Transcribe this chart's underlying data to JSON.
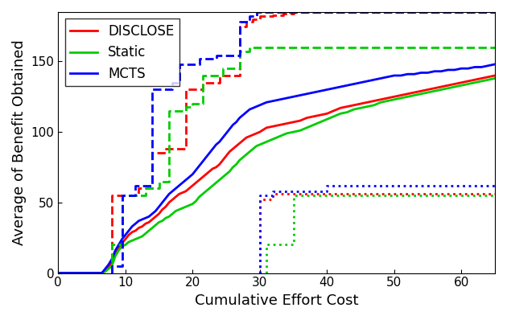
{
  "title": "",
  "xlabel": "Cumulative Effort Cost",
  "ylabel": "Average of Benefit Obtained",
  "xlim": [
    0,
    65
  ],
  "ylim": [
    0,
    185
  ],
  "xticks": [
    0,
    10,
    20,
    30,
    40,
    50,
    60
  ],
  "yticks": [
    0,
    50,
    100,
    150
  ],
  "colors": {
    "DISCLOSE": "#ff0000",
    "Static": "#00cc00",
    "MCTS": "#0000ff"
  },
  "legend_labels": [
    "DISCLOSE",
    "Static",
    "MCTS"
  ],
  "solid_DISCLOSE_x": [
    0,
    6.5,
    7.0,
    7.5,
    8.0,
    8.5,
    9.0,
    9.5,
    10.0,
    10.5,
    11.0,
    11.5,
    12.0,
    12.5,
    13.0,
    13.5,
    14.0,
    14.5,
    15.0,
    15.5,
    16.0,
    16.5,
    17.0,
    17.5,
    18.0,
    18.5,
    19.0,
    19.5,
    20.0,
    20.5,
    21.0,
    21.5,
    22.0,
    22.5,
    23.0,
    23.5,
    24.0,
    24.5,
    25.0,
    25.5,
    26.0,
    26.5,
    27.0,
    27.5,
    28.0,
    28.5,
    29.0,
    29.5,
    30.0,
    31.0,
    32.0,
    33.0,
    34.0,
    35.0,
    36.0,
    37.0,
    38.0,
    39.0,
    40.0,
    41.0,
    42.0,
    43.0,
    44.0,
    45.0,
    46.0,
    47.0,
    48.0,
    49.0,
    50.0,
    51.0,
    52.0,
    53.0,
    54.0,
    55.0,
    56.0,
    57.0,
    58.0,
    59.0,
    60.0,
    61.0,
    62.0,
    63.0,
    64.0,
    65.0
  ],
  "solid_DISCLOSE_y": [
    0,
    0,
    2,
    4,
    8,
    14,
    18,
    21,
    24,
    27,
    29,
    30,
    32,
    33,
    35,
    36,
    38,
    40,
    42,
    45,
    47,
    50,
    52,
    54,
    56,
    57,
    58,
    60,
    62,
    64,
    66,
    68,
    70,
    72,
    74,
    75,
    77,
    80,
    83,
    86,
    88,
    90,
    92,
    94,
    96,
    97,
    98,
    99,
    100,
    103,
    104,
    105,
    106,
    107,
    108,
    110,
    111,
    112,
    113,
    115,
    117,
    118,
    119,
    120,
    121,
    122,
    123,
    124,
    125,
    126,
    127,
    128,
    129,
    130,
    131,
    132,
    133,
    134,
    135,
    136,
    137,
    138,
    139,
    140
  ],
  "solid_Static_x": [
    0,
    6.5,
    7.0,
    7.5,
    8.0,
    8.5,
    9.0,
    9.5,
    10.0,
    10.5,
    11.0,
    11.5,
    12.0,
    12.5,
    13.0,
    13.5,
    14.0,
    14.5,
    15.0,
    15.5,
    16.0,
    16.5,
    17.0,
    17.5,
    18.0,
    18.5,
    19.0,
    19.5,
    20.0,
    20.5,
    21.0,
    21.5,
    22.0,
    22.5,
    23.0,
    23.5,
    24.0,
    24.5,
    25.0,
    25.5,
    26.0,
    26.5,
    27.0,
    27.5,
    28.0,
    28.5,
    29.0,
    29.5,
    30.0,
    31.0,
    32.0,
    33.0,
    34.0,
    35.0,
    36.0,
    37.0,
    38.0,
    39.0,
    40.0,
    41.0,
    42.0,
    43.0,
    44.0,
    45.0,
    46.0,
    47.0,
    48.0,
    49.0,
    50.0,
    51.0,
    52.0,
    53.0,
    54.0,
    55.0,
    56.0,
    57.0,
    58.0,
    59.0,
    60.0,
    61.0,
    62.0,
    63.0,
    64.0,
    65.0
  ],
  "solid_Static_y": [
    0,
    0,
    1,
    3,
    5,
    12,
    16,
    19,
    20,
    22,
    23,
    24,
    25,
    26,
    28,
    30,
    32,
    34,
    36,
    37,
    39,
    40,
    42,
    44,
    45,
    46,
    47,
    48,
    49,
    51,
    54,
    56,
    58,
    60,
    62,
    64,
    66,
    68,
    70,
    72,
    75,
    77,
    80,
    82,
    84,
    86,
    88,
    90,
    91,
    93,
    95,
    97,
    99,
    100,
    101,
    103,
    105,
    107,
    109,
    111,
    113,
    114,
    116,
    117,
    118,
    119,
    121,
    122,
    123,
    124,
    125,
    126,
    127,
    128,
    129,
    130,
    131,
    132,
    133,
    134,
    135,
    136,
    137,
    138
  ],
  "solid_MCTS_x": [
    0,
    6.5,
    7.0,
    7.5,
    8.0,
    8.5,
    9.0,
    9.5,
    10.0,
    10.5,
    11.0,
    11.5,
    12.0,
    12.5,
    13.0,
    13.5,
    14.0,
    14.5,
    15.0,
    15.5,
    16.0,
    16.5,
    17.0,
    17.5,
    18.0,
    18.5,
    19.0,
    19.5,
    20.0,
    20.5,
    21.0,
    21.5,
    22.0,
    22.5,
    23.0,
    23.5,
    24.0,
    24.5,
    25.0,
    25.5,
    26.0,
    26.5,
    27.0,
    27.5,
    28.0,
    28.5,
    29.0,
    29.5,
    30.0,
    31.0,
    32.0,
    33.0,
    34.0,
    35.0,
    36.0,
    37.0,
    38.0,
    39.0,
    40.0,
    41.0,
    42.0,
    43.0,
    44.0,
    45.0,
    46.0,
    47.0,
    48.0,
    49.0,
    50.0,
    51.0,
    52.0,
    53.0,
    54.0,
    55.0,
    56.0,
    57.0,
    58.0,
    59.0,
    60.0,
    61.0,
    62.0,
    63.0,
    64.0,
    65.0
  ],
  "solid_MCTS_y": [
    0,
    0,
    3,
    6,
    10,
    16,
    20,
    24,
    27,
    30,
    33,
    35,
    37,
    38,
    39,
    40,
    42,
    44,
    47,
    50,
    53,
    56,
    58,
    60,
    62,
    64,
    66,
    68,
    70,
    73,
    76,
    79,
    82,
    85,
    88,
    91,
    93,
    96,
    99,
    102,
    105,
    107,
    110,
    112,
    114,
    116,
    117,
    118,
    119,
    121,
    122,
    123,
    124,
    125,
    126,
    127,
    128,
    129,
    130,
    131,
    132,
    133,
    134,
    135,
    136,
    137,
    138,
    139,
    140,
    140,
    141,
    141,
    142,
    142,
    143,
    143,
    144,
    144,
    145,
    145,
    146,
    146,
    147,
    148
  ],
  "dashed_DISCLOSE_x": [
    8.0,
    8.0,
    12.0,
    12.0,
    14.0,
    14.0,
    16.0,
    16.0,
    19.0,
    19.0,
    21.5,
    21.5,
    24.0,
    24.0,
    27.0,
    27.0,
    28.0,
    28.0,
    29.0,
    29.0,
    30.0,
    30.0,
    32.0,
    32.0,
    33.5,
    33.5,
    35.0,
    35.0,
    55.0,
    55.0,
    57.0,
    57.0,
    65.0
  ],
  "dashed_DISCLOSE_y": [
    0,
    55,
    55,
    60,
    60,
    85,
    85,
    88,
    88,
    130,
    130,
    135,
    135,
    140,
    140,
    175,
    175,
    178,
    178,
    180,
    180,
    182,
    182,
    183,
    183,
    184,
    184,
    185,
    185,
    185,
    185,
    185,
    185
  ],
  "dashed_Static_x": [
    8.0,
    8.0,
    9.5,
    9.5,
    13.0,
    13.0,
    15.0,
    15.0,
    16.5,
    16.5,
    19.0,
    19.0,
    20.0,
    20.0,
    21.5,
    21.5,
    24.5,
    24.5,
    27.0,
    27.0,
    28.5,
    28.5,
    33.5,
    33.5,
    65.0
  ],
  "dashed_Static_y": [
    0,
    20,
    20,
    55,
    55,
    60,
    60,
    65,
    65,
    115,
    115,
    118,
    118,
    120,
    120,
    140,
    140,
    145,
    145,
    157,
    157,
    160,
    160,
    160,
    160
  ],
  "dashed_MCTS_x": [
    8.0,
    8.0,
    9.5,
    9.5,
    11.5,
    11.5,
    14.0,
    14.0,
    17.0,
    17.0,
    18.0,
    18.0,
    21.0,
    21.0,
    23.5,
    23.5,
    27.0,
    27.0,
    28.5,
    28.5,
    29.5,
    29.5,
    65.0
  ],
  "dashed_MCTS_y": [
    0,
    5,
    5,
    55,
    55,
    62,
    62,
    130,
    130,
    135,
    135,
    148,
    148,
    152,
    152,
    154,
    154,
    178,
    178,
    182,
    182,
    185,
    185
  ],
  "dotted_DISCLOSE_x": [
    30.0,
    30.0,
    32.0,
    32.0,
    65.0
  ],
  "dotted_DISCLOSE_y": [
    0,
    52,
    52,
    56,
    56
  ],
  "dotted_Static_x": [
    31.0,
    31.0,
    35.0,
    35.0,
    65.0
  ],
  "dotted_Static_y": [
    0,
    20,
    20,
    55,
    55
  ],
  "dotted_MCTS_x": [
    30.0,
    30.0,
    32.0,
    32.0,
    40.0,
    40.0,
    65.0
  ],
  "dotted_MCTS_y": [
    0,
    55,
    55,
    58,
    58,
    62,
    62
  ],
  "linewidth": 2.0
}
